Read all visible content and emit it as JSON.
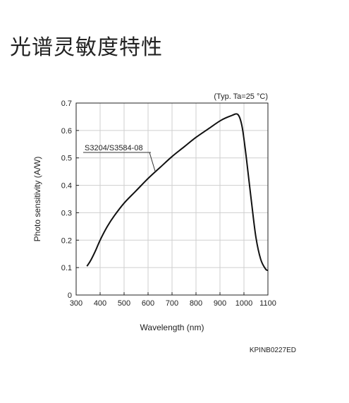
{
  "page": {
    "title": "光谱灵敏度特性"
  },
  "chart_data": {
    "type": "line",
    "title": "",
    "note": "(Typ. Ta=25 °C)",
    "xlabel": "Wavelength (nm)",
    "ylabel": "Photo sensitivity (A/W)",
    "xlim": [
      300,
      1100
    ],
    "ylim": [
      0,
      0.7
    ],
    "xticks": [
      300,
      400,
      500,
      600,
      700,
      800,
      900,
      1000,
      1100
    ],
    "yticks": [
      0,
      0.1,
      0.2,
      0.3,
      0.4,
      0.5,
      0.6,
      0.7
    ],
    "ytick_labels": [
      "0",
      "0.1",
      "0.2",
      "0.3",
      "0.4",
      "0.5",
      "0.6",
      "0.7"
    ],
    "grid": true,
    "series": [
      {
        "name": "S3204/S3584-08",
        "color": "#111111",
        "x": [
          345,
          360,
          380,
          400,
          430,
          460,
          500,
          550,
          600,
          650,
          700,
          750,
          800,
          850,
          900,
          930,
          950,
          965,
          975,
          985,
          995,
          1010,
          1030,
          1050,
          1070,
          1090,
          1100
        ],
        "y": [
          0.105,
          0.125,
          0.16,
          0.2,
          0.25,
          0.29,
          0.335,
          0.38,
          0.425,
          0.465,
          0.505,
          0.54,
          0.575,
          0.605,
          0.635,
          0.648,
          0.655,
          0.66,
          0.658,
          0.64,
          0.6,
          0.5,
          0.35,
          0.21,
          0.13,
          0.095,
          0.09
        ]
      }
    ],
    "annotation": {
      "label": "S3204/S3584-08",
      "points_to": [
        630,
        0.45
      ]
    },
    "footer_code": "KPINB0227ED"
  },
  "colors": {
    "axis": "#222222",
    "grid": "#cfcfcf",
    "curve": "#111111",
    "background": "#ffffff"
  }
}
